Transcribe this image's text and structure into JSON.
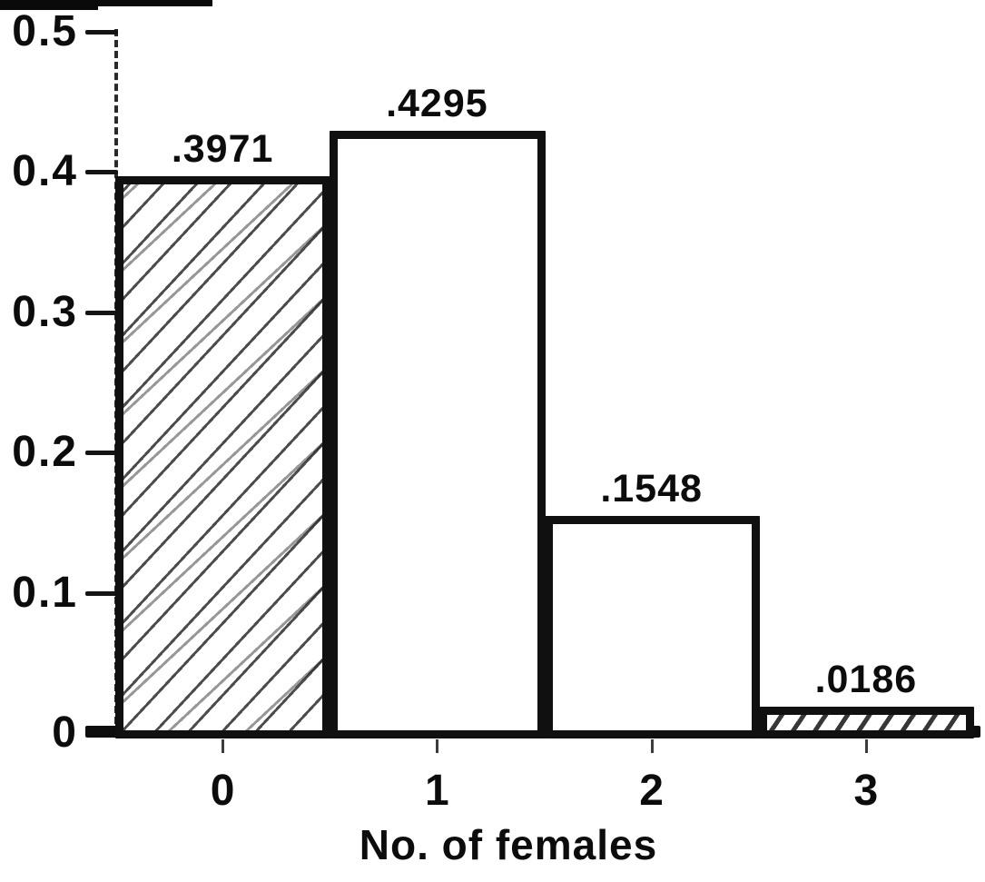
{
  "chart_data": {
    "type": "bar",
    "categories": [
      "0",
      "1",
      "2",
      "3"
    ],
    "values": [
      0.3971,
      0.4295,
      0.1548,
      0.0186
    ],
    "bar_value_labels": [
      ".3971",
      ".4295",
      ".1548",
      ".0186"
    ],
    "bar_fill_styles": [
      "hatched-sketch",
      "plain-white",
      "plain-white",
      "hatched-dense"
    ],
    "title": "",
    "xlabel": "No. of females",
    "ylabel": "",
    "ylim": [
      0,
      0.5
    ],
    "ytick_labels": [
      "0",
      "0.1",
      "0.2",
      "0.3",
      "0.4",
      "0.5"
    ],
    "grid": false,
    "legend": "none",
    "ink_color": "#101010",
    "background_color": "#ffffff"
  }
}
